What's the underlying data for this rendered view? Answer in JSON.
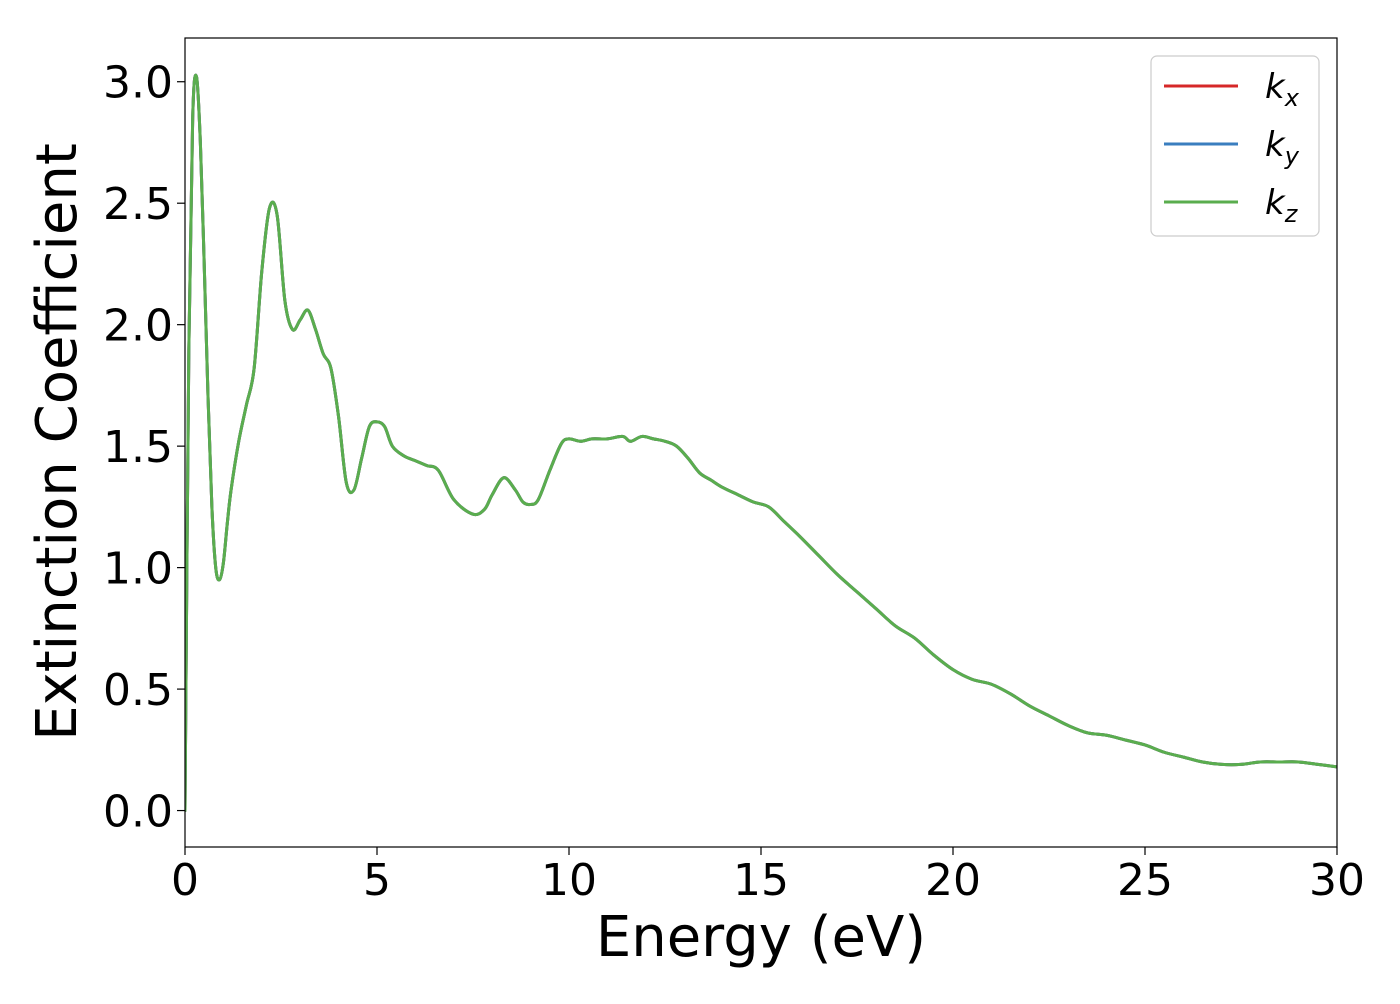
{
  "chart_data": {
    "type": "line",
    "title": "",
    "xlabel": "Energy (eV)",
    "ylabel": "Extinction Coefficient",
    "xlim": [
      0,
      30
    ],
    "ylim": [
      -0.15,
      3.18
    ],
    "xticks": [
      0,
      5,
      10,
      15,
      20,
      25,
      30
    ],
    "xtick_labels": [
      "0",
      "5",
      "10",
      "15",
      "20",
      "25",
      "30"
    ],
    "yticks": [
      0.0,
      0.5,
      1.0,
      1.5,
      2.0,
      2.5,
      3.0
    ],
    "ytick_labels": [
      "0.0",
      "0.5",
      "1.0",
      "1.5",
      "2.0",
      "2.5",
      "3.0"
    ],
    "grid": false,
    "legend_position": "top-right",
    "x": [
      0,
      0.1,
      0.2,
      0.3,
      0.4,
      0.5,
      0.6,
      0.7,
      0.8,
      0.9,
      1.0,
      1.1,
      1.2,
      1.4,
      1.6,
      1.8,
      2.0,
      2.2,
      2.4,
      2.6,
      2.8,
      3.0,
      3.2,
      3.4,
      3.6,
      3.8,
      4.0,
      4.2,
      4.4,
      4.6,
      4.8,
      5.0,
      5.2,
      5.4,
      5.7,
      6.0,
      6.3,
      6.6,
      7.0,
      7.5,
      7.8,
      8.0,
      8.3,
      8.6,
      8.8,
      9.0,
      9.2,
      9.5,
      9.8,
      10.0,
      10.3,
      10.6,
      11.0,
      11.4,
      11.6,
      11.9,
      12.2,
      12.5,
      12.8,
      13.1,
      13.4,
      13.7,
      14.0,
      14.4,
      14.8,
      15.2,
      15.6,
      16.0,
      16.5,
      17.0,
      17.5,
      18.0,
      18.5,
      19.0,
      19.5,
      20.0,
      20.5,
      21.0,
      21.5,
      22.0,
      22.5,
      23.0,
      23.5,
      24.0,
      24.5,
      25.0,
      25.5,
      26.0,
      26.5,
      27.0,
      27.5,
      28.0,
      28.5,
      29.0,
      29.5,
      30.0
    ],
    "series": [
      {
        "name": "k_x",
        "label_base": "k",
        "label_sub": "x",
        "color": "#d62728",
        "values": [
          0.0,
          1.9,
          2.85,
          3.02,
          2.75,
          2.25,
          1.7,
          1.25,
          1.0,
          0.95,
          1.02,
          1.18,
          1.32,
          1.52,
          1.67,
          1.82,
          2.22,
          2.48,
          2.45,
          2.1,
          1.98,
          2.02,
          2.06,
          1.98,
          1.88,
          1.82,
          1.62,
          1.35,
          1.32,
          1.45,
          1.58,
          1.6,
          1.58,
          1.5,
          1.46,
          1.44,
          1.42,
          1.4,
          1.28,
          1.22,
          1.24,
          1.3,
          1.37,
          1.32,
          1.27,
          1.26,
          1.28,
          1.4,
          1.51,
          1.53,
          1.52,
          1.53,
          1.53,
          1.54,
          1.52,
          1.54,
          1.53,
          1.52,
          1.5,
          1.45,
          1.39,
          1.36,
          1.33,
          1.3,
          1.27,
          1.25,
          1.19,
          1.13,
          1.05,
          0.97,
          0.9,
          0.83,
          0.76,
          0.71,
          0.64,
          0.58,
          0.54,
          0.52,
          0.48,
          0.43,
          0.39,
          0.35,
          0.32,
          0.31,
          0.29,
          0.27,
          0.24,
          0.22,
          0.2,
          0.19,
          0.19,
          0.2,
          0.2,
          0.2,
          0.19,
          0.18
        ]
      },
      {
        "name": "k_y",
        "label_base": "k",
        "label_sub": "y",
        "color": "#3a7ebf",
        "values": [
          0.0,
          1.9,
          2.85,
          3.02,
          2.75,
          2.25,
          1.7,
          1.25,
          1.0,
          0.95,
          1.02,
          1.18,
          1.32,
          1.52,
          1.67,
          1.82,
          2.22,
          2.48,
          2.45,
          2.1,
          1.98,
          2.02,
          2.06,
          1.98,
          1.88,
          1.82,
          1.62,
          1.35,
          1.32,
          1.45,
          1.58,
          1.6,
          1.58,
          1.5,
          1.46,
          1.44,
          1.42,
          1.4,
          1.28,
          1.22,
          1.24,
          1.3,
          1.37,
          1.32,
          1.27,
          1.26,
          1.28,
          1.4,
          1.51,
          1.53,
          1.52,
          1.53,
          1.53,
          1.54,
          1.52,
          1.54,
          1.53,
          1.52,
          1.5,
          1.45,
          1.39,
          1.36,
          1.33,
          1.3,
          1.27,
          1.25,
          1.19,
          1.13,
          1.05,
          0.97,
          0.9,
          0.83,
          0.76,
          0.71,
          0.64,
          0.58,
          0.54,
          0.52,
          0.48,
          0.43,
          0.39,
          0.35,
          0.32,
          0.31,
          0.29,
          0.27,
          0.24,
          0.22,
          0.2,
          0.19,
          0.19,
          0.2,
          0.2,
          0.2,
          0.19,
          0.18
        ]
      },
      {
        "name": "k_z",
        "label_base": "k",
        "label_sub": "z",
        "color": "#5aad4e",
        "values": [
          0.0,
          1.9,
          2.85,
          3.02,
          2.75,
          2.25,
          1.7,
          1.25,
          1.0,
          0.95,
          1.02,
          1.18,
          1.32,
          1.52,
          1.67,
          1.82,
          2.22,
          2.48,
          2.45,
          2.1,
          1.98,
          2.02,
          2.06,
          1.98,
          1.88,
          1.82,
          1.62,
          1.35,
          1.32,
          1.45,
          1.58,
          1.6,
          1.58,
          1.5,
          1.46,
          1.44,
          1.42,
          1.4,
          1.28,
          1.22,
          1.24,
          1.3,
          1.37,
          1.32,
          1.27,
          1.26,
          1.28,
          1.4,
          1.51,
          1.53,
          1.52,
          1.53,
          1.53,
          1.54,
          1.52,
          1.54,
          1.53,
          1.52,
          1.5,
          1.45,
          1.39,
          1.36,
          1.33,
          1.3,
          1.27,
          1.25,
          1.19,
          1.13,
          1.05,
          0.97,
          0.9,
          0.83,
          0.76,
          0.71,
          0.64,
          0.58,
          0.54,
          0.52,
          0.48,
          0.43,
          0.39,
          0.35,
          0.32,
          0.31,
          0.29,
          0.27,
          0.24,
          0.22,
          0.2,
          0.19,
          0.19,
          0.2,
          0.2,
          0.2,
          0.19,
          0.18
        ]
      }
    ]
  }
}
